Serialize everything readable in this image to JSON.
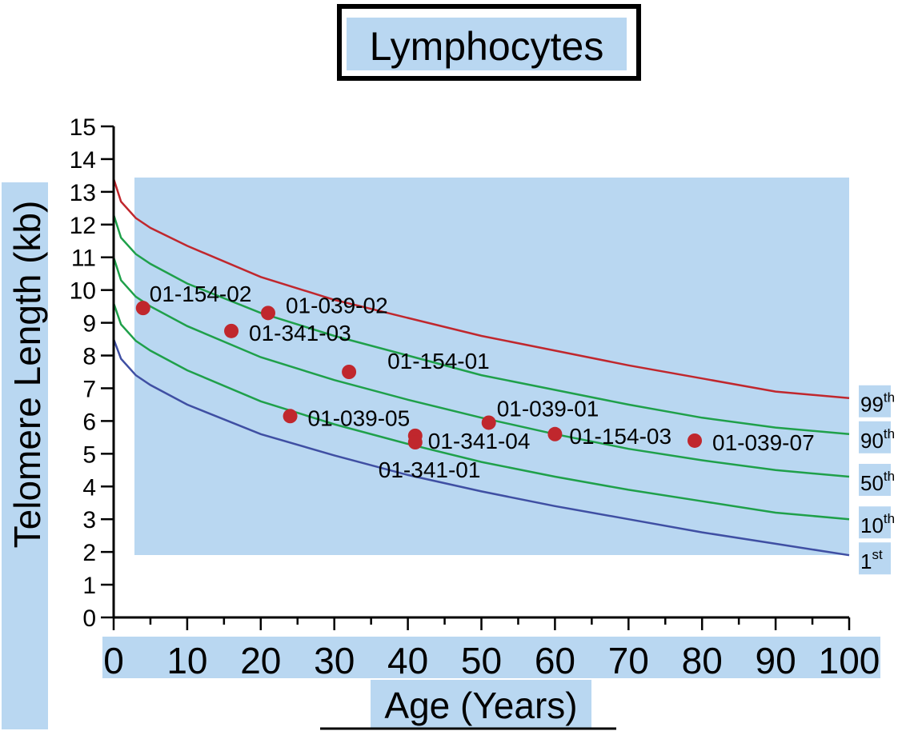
{
  "chart_data": {
    "type": "scatter",
    "title": "Lymphocytes",
    "xlabel": "Age (Years)",
    "ylabel": "Telomere Length (kb)",
    "xlim": [
      0,
      100
    ],
    "ylim": [
      0,
      15
    ],
    "x_ticks": [
      "0",
      "10",
      "20",
      "30",
      "40",
      "50",
      "60",
      "70",
      "80",
      "90",
      "100"
    ],
    "y_ticks": [
      "0",
      "1",
      "2",
      "3",
      "4",
      "5",
      "6",
      "7",
      "8",
      "9",
      "10",
      "11",
      "12",
      "13",
      "14",
      "15"
    ],
    "grid": false,
    "colors": {
      "highlight": "#b9d7f1",
      "percentile_99": "#c0272d",
      "percentile_mid": "#1fa04a",
      "percentile_1": "#3f4fa3",
      "point": "#c0272d"
    },
    "percentile_curves": [
      {
        "base": "99",
        "sup": "th",
        "color_key": "percentile_99",
        "x": [
          0,
          1,
          3,
          5,
          10,
          20,
          30,
          40,
          50,
          60,
          70,
          80,
          90,
          100
        ],
        "y": [
          13.4,
          12.7,
          12.2,
          11.9,
          11.35,
          10.4,
          9.7,
          9.15,
          8.6,
          8.15,
          7.7,
          7.3,
          6.9,
          6.7
        ]
      },
      {
        "base": "90",
        "sup": "th",
        "color_key": "percentile_mid",
        "x": [
          0,
          1,
          3,
          5,
          10,
          20,
          30,
          40,
          50,
          60,
          70,
          80,
          90,
          100
        ],
        "y": [
          12.3,
          11.6,
          11.1,
          10.8,
          10.2,
          9.3,
          8.6,
          8.0,
          7.4,
          6.95,
          6.5,
          6.1,
          5.8,
          5.6
        ]
      },
      {
        "base": "50",
        "sup": "th",
        "color_key": "percentile_mid",
        "x": [
          0,
          1,
          3,
          5,
          10,
          20,
          30,
          40,
          50,
          60,
          70,
          80,
          90,
          100
        ],
        "y": [
          11.0,
          10.3,
          9.8,
          9.5,
          8.9,
          7.95,
          7.25,
          6.65,
          6.1,
          5.6,
          5.15,
          4.8,
          4.5,
          4.3
        ]
      },
      {
        "base": "10",
        "sup": "th",
        "color_key": "percentile_mid",
        "x": [
          0,
          1,
          3,
          5,
          10,
          20,
          30,
          40,
          50,
          60,
          70,
          80,
          90,
          100
        ],
        "y": [
          9.6,
          8.95,
          8.45,
          8.15,
          7.55,
          6.6,
          5.9,
          5.3,
          4.75,
          4.3,
          3.9,
          3.55,
          3.2,
          3.0
        ]
      },
      {
        "base": "1",
        "sup": "st",
        "color_key": "percentile_1",
        "x": [
          0,
          1,
          3,
          5,
          10,
          20,
          30,
          40,
          50,
          60,
          70,
          80,
          90,
          100
        ],
        "y": [
          8.5,
          7.9,
          7.4,
          7.1,
          6.5,
          5.6,
          4.95,
          4.35,
          3.85,
          3.4,
          3.0,
          2.6,
          2.25,
          1.9
        ]
      }
    ],
    "points": [
      {
        "label": "01-154-02",
        "x": 4,
        "y": 9.45
      },
      {
        "label": "01-039-02",
        "x": 21,
        "y": 9.3
      },
      {
        "label": "01-341-03",
        "x": 16,
        "y": 8.75
      },
      {
        "label": "01-154-01",
        "x": 32,
        "y": 7.5
      },
      {
        "label": "01-039-05",
        "x": 24,
        "y": 6.15
      },
      {
        "label": "01-039-01",
        "x": 51,
        "y": 5.95
      },
      {
        "label": "01-341-04",
        "x": 41,
        "y": 5.55
      },
      {
        "label": "01-341-01",
        "x": 41,
        "y": 5.35
      },
      {
        "label": "01-154-03",
        "x": 60,
        "y": 5.6
      },
      {
        "label": "01-039-07",
        "x": 79,
        "y": 5.4
      }
    ]
  }
}
